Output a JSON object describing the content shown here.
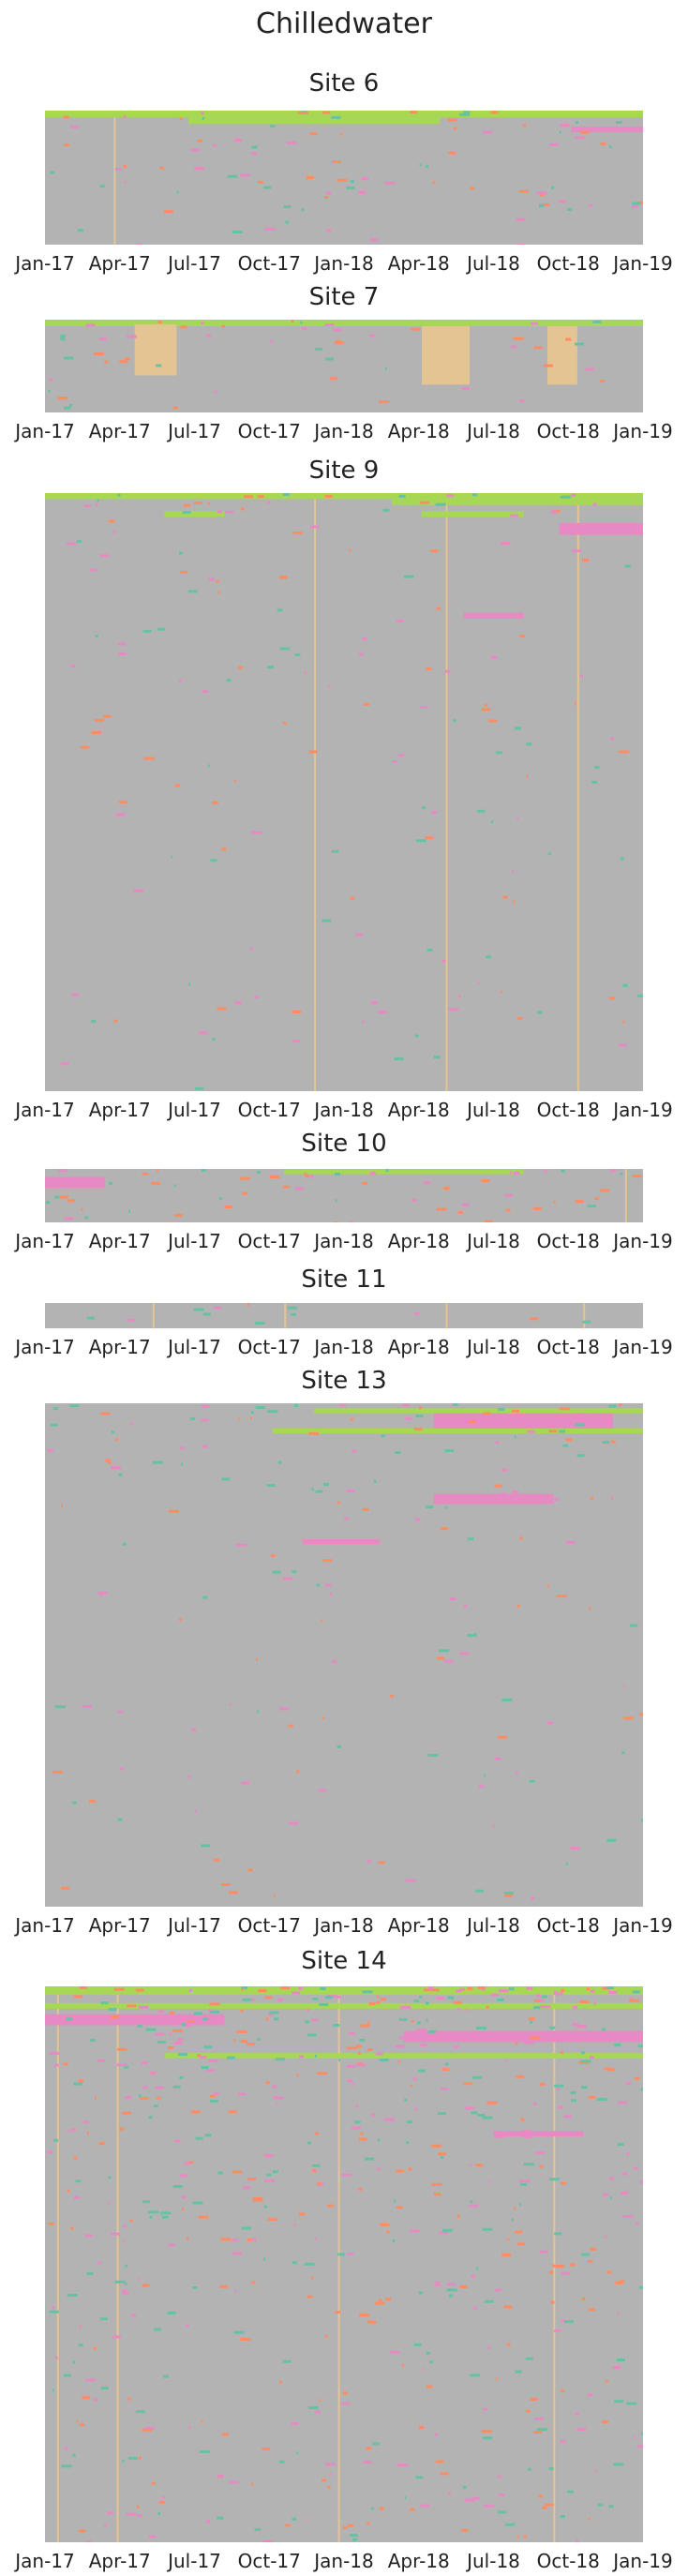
{
  "title": "Chilledwater",
  "chart_data": [
    {
      "type": "heatmap",
      "title": "Site 6",
      "x_tick_labels": [
        "Jan-17",
        "Apr-17",
        "Jul-17",
        "Oct-17",
        "Jan-18",
        "Apr-18",
        "Jul-18",
        "Oct-18",
        "Jan-19"
      ]
    },
    {
      "type": "heatmap",
      "title": "Site 7",
      "x_tick_labels": [
        "Jan-17",
        "Apr-17",
        "Jul-17",
        "Oct-17",
        "Jan-18",
        "Apr-18",
        "Jul-18",
        "Oct-18",
        "Jan-19"
      ]
    },
    {
      "type": "heatmap",
      "title": "Site 9",
      "x_tick_labels": [
        "Jan-17",
        "Apr-17",
        "Jul-17",
        "Oct-17",
        "Jan-18",
        "Apr-18",
        "Jul-18",
        "Oct-18",
        "Jan-19"
      ]
    },
    {
      "type": "heatmap",
      "title": "Site 10",
      "x_tick_labels": [
        "Jan-17",
        "Apr-17",
        "Jul-17",
        "Oct-17",
        "Jan-18",
        "Apr-18",
        "Jul-18",
        "Oct-18",
        "Jan-19"
      ]
    },
    {
      "type": "heatmap",
      "title": "Site 11",
      "x_tick_labels": [
        "Jan-17",
        "Apr-17",
        "Jul-17",
        "Oct-17",
        "Jan-18",
        "Apr-18",
        "Jul-18",
        "Oct-18",
        "Jan-19"
      ]
    },
    {
      "type": "heatmap",
      "title": "Site 13",
      "x_tick_labels": [
        "Jan-17",
        "Apr-17",
        "Jul-17",
        "Oct-17",
        "Jan-18",
        "Apr-18",
        "Jul-18",
        "Oct-18",
        "Jan-19"
      ]
    },
    {
      "type": "heatmap",
      "title": "Site 14",
      "x_tick_labels": [
        "Jan-17",
        "Apr-17",
        "Jul-17",
        "Oct-17",
        "Jan-18",
        "Apr-18",
        "Jul-18",
        "Oct-18",
        "Jan-19"
      ]
    }
  ],
  "colors": {
    "background": "#b3b3b3",
    "green": "#a6d854",
    "pink": "#e78ac3",
    "teal": "#66c2a5",
    "orange": "#fc8d62",
    "peach": "#e5c494"
  }
}
